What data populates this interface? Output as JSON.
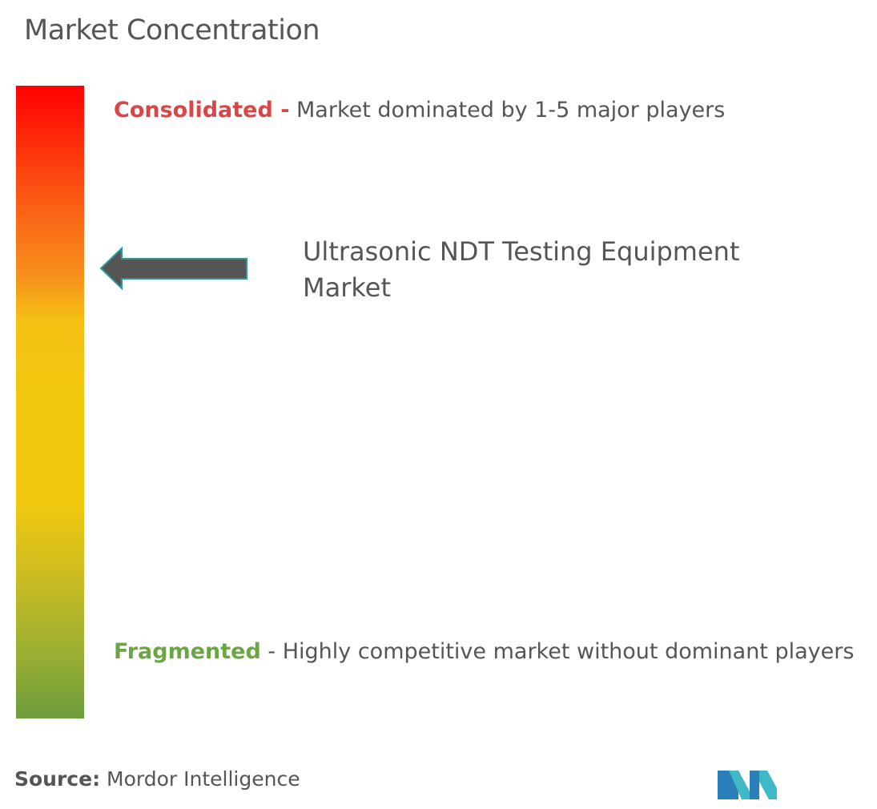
{
  "title": "Market Concentration",
  "scale": {
    "top": {
      "label": "Consolidated -",
      "description": "Market dominated by 1-5 major players"
    },
    "bottom": {
      "label": "Fragmented",
      "description": "- Highly competitive market without dominant players"
    }
  },
  "marker": {
    "label": "Ultrasonic NDT Testing Equipment Market"
  },
  "source": {
    "label": "Source:",
    "text": "Mordor Intelligence"
  }
}
